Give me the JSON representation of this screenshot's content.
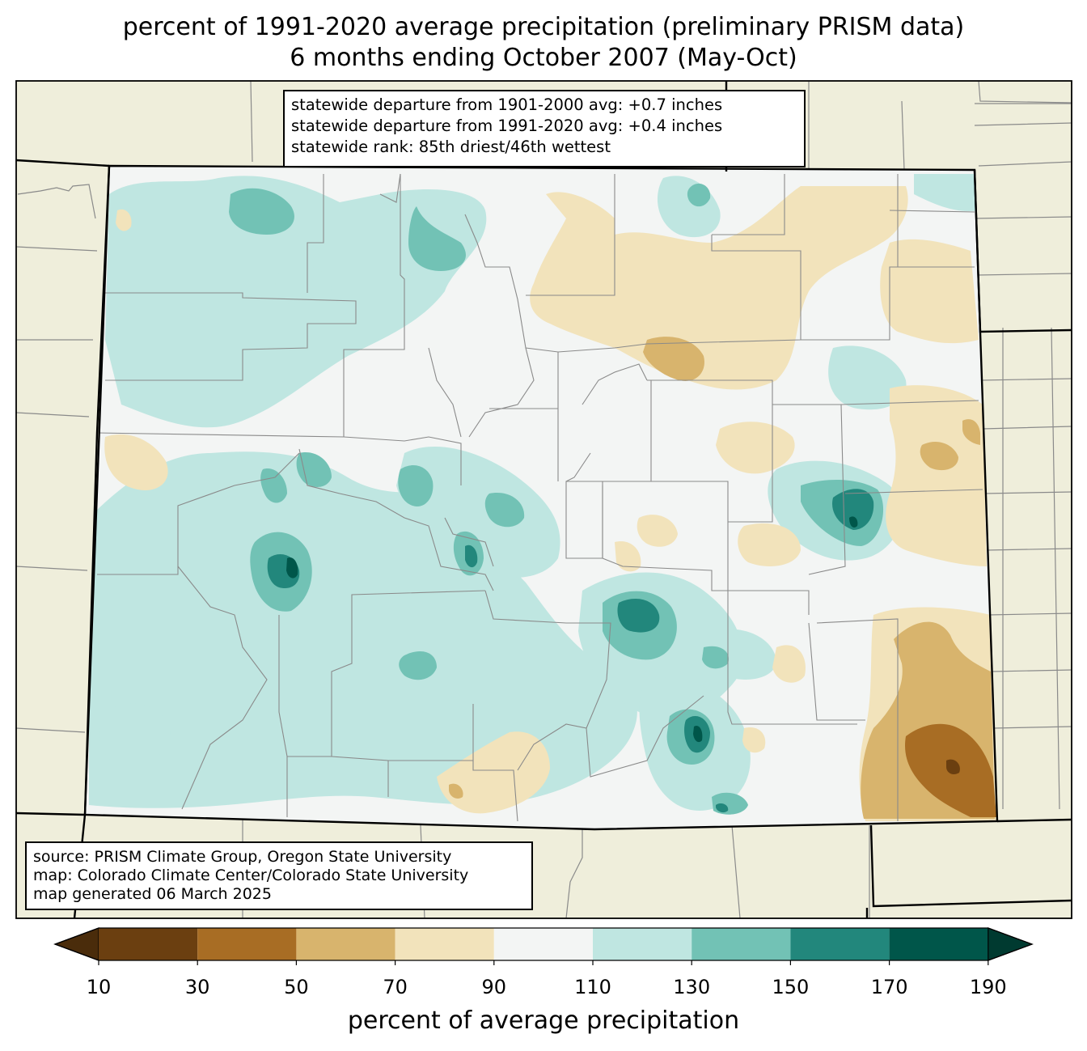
{
  "title": {
    "line1": "percent of 1991-2020 average precipitation (preliminary PRISM data)",
    "line2": "6 months ending October 2007 (May-Oct)"
  },
  "stats": {
    "line1": "statewide departure from 1901-2000 avg: +0.7 inches",
    "line2": "statewide departure from 1991-2020 avg: +0.4 inches",
    "line3": "statewide rank: 85th driest/46th wettest"
  },
  "source": {
    "line1": "source: PRISM Climate Group, Oregon State University",
    "line2": "map: Colorado Climate Center/Colorado State University",
    "line3": "map generated 06 March 2025"
  },
  "colorbar": {
    "label": "percent of average precipitation",
    "ticks": [
      "10",
      "30",
      "50",
      "70",
      "90",
      "110",
      "130",
      "150",
      "170",
      "190"
    ],
    "colors": [
      "#6b3f10",
      "#a86d24",
      "#d8b46d",
      "#f2e3bb",
      "#f3f5f4",
      "#bfe6e1",
      "#72c2b5",
      "#22877c",
      "#00564a"
    ],
    "under_color": "#4a2c0b",
    "over_color": "#003a30"
  },
  "colors": {
    "background_land": "#efeedb",
    "state_border": "#000000",
    "county_line": "#8a8a8a"
  }
}
